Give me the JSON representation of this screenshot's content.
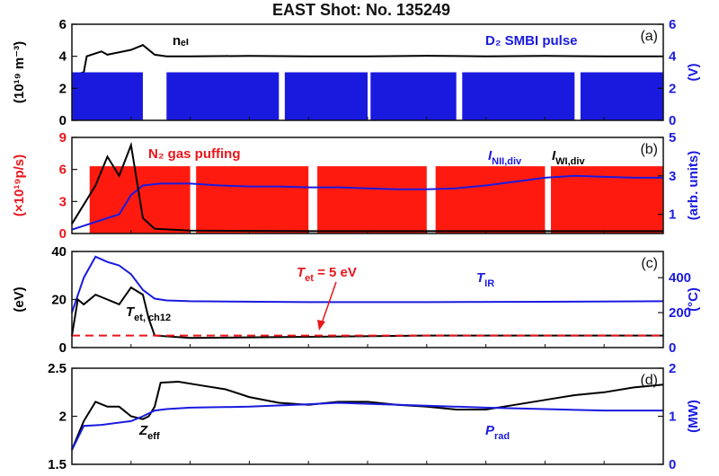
{
  "chart_data": {
    "type": "line",
    "title": "EAST Shot: No. 135249",
    "panels": [
      {
        "id": "a",
        "panel_label": "(a)",
        "left_axis": {
          "label": "(10¹⁹ m⁻³)",
          "ylim": [
            0,
            6
          ],
          "ticks": [
            "0",
            "2",
            "4",
            "6"
          ],
          "color": "#000000"
        },
        "right_axis": {
          "label": "(V)",
          "ylim": [
            0,
            6
          ],
          "ticks": [
            "0",
            "2",
            "4",
            "6"
          ],
          "color": "#1a1adf"
        },
        "annotations": [
          {
            "id": "ne",
            "text": "nₑₗ",
            "color": "#000000"
          },
          {
            "id": "smbi",
            "text": "D₂ SMBI pulse",
            "color": "#1a1adf"
          }
        ],
        "series": [
          {
            "name": "nₑₗ",
            "axis": "left",
            "color": "#000000",
            "x": [
              0,
              0.02,
              0.025,
              0.05,
              0.06,
              0.1,
              0.12,
              0.14,
              0.16,
              0.18,
              0.2,
              0.3,
              0.4,
              0.5,
              0.6,
              0.7,
              0.8,
              0.9,
              1.0
            ],
            "y": [
              2.8,
              3.0,
              4.0,
              4.3,
              4.1,
              4.4,
              4.7,
              4.1,
              4.0,
              4.0,
              4.0,
              4.02,
              4.0,
              4.0,
              4.03,
              4.0,
              4.02,
              4.0,
              4.0
            ]
          },
          {
            "name": "D₂ SMBI pulse",
            "axis": "right",
            "color": "#1a1adf",
            "pulse_level": 3.0,
            "segments": [
              [
                0.0,
                0.12
              ],
              [
                0.16,
                0.35
              ],
              [
                0.36,
                0.5
              ],
              [
                0.505,
                0.65
              ],
              [
                0.66,
                0.85
              ],
              [
                0.86,
                1.0
              ]
            ]
          }
        ]
      },
      {
        "id": "b",
        "panel_label": "(b)",
        "left_axis": {
          "label": "(×10¹⁹p/s)",
          "ylim": [
            0,
            9
          ],
          "ticks": [
            "0",
            "3",
            "6",
            "9"
          ],
          "color": "#e8161b"
        },
        "right_axis": {
          "label": "(arb. units)",
          "ylim": [
            0,
            5
          ],
          "ticks": [
            "1",
            "3",
            "5"
          ],
          "color": "#1a1adf"
        },
        "annotations": [
          {
            "id": "n2",
            "text": "N₂ gas puffing",
            "color": "#e8161b"
          },
          {
            "id": "nii",
            "text": "I_NII,div",
            "color": "#1a1adf"
          },
          {
            "id": "wi",
            "text": "I_WI,div",
            "color": "#000000"
          }
        ],
        "series": [
          {
            "name": "N₂ gas puffing",
            "axis": "left",
            "color": "#ff1a10",
            "pulse_level": 6.3,
            "segments": [
              [
                0.03,
                0.2
              ],
              [
                0.21,
                0.4
              ],
              [
                0.415,
                0.6
              ],
              [
                0.615,
                0.8
              ],
              [
                0.81,
                1.0
              ]
            ]
          },
          {
            "name": "I_NII,div",
            "axis": "right",
            "color": "#1a1adf",
            "x": [
              0.0,
              0.08,
              0.1,
              0.12,
              0.15,
              0.2,
              0.25,
              0.3,
              0.35,
              0.4,
              0.45,
              0.5,
              0.55,
              0.6,
              0.65,
              0.7,
              0.75,
              0.8,
              0.85,
              0.9,
              0.95,
              1.0
            ],
            "y": [
              0.2,
              1.0,
              2.0,
              2.5,
              2.6,
              2.6,
              2.5,
              2.45,
              2.45,
              2.4,
              2.4,
              2.35,
              2.3,
              2.3,
              2.35,
              2.5,
              2.7,
              2.9,
              3.0,
              2.95,
              2.9,
              2.9
            ]
          },
          {
            "name": "I_WI,div",
            "axis": "right",
            "color": "#000000",
            "x": [
              0.0,
              0.04,
              0.06,
              0.08,
              0.1,
              0.12,
              0.14,
              0.2,
              0.4,
              0.6,
              0.8,
              1.0
            ],
            "y": [
              0.5,
              2.5,
              4.0,
              3.0,
              4.6,
              0.8,
              0.25,
              0.15,
              0.12,
              0.12,
              0.12,
              0.12
            ]
          }
        ]
      },
      {
        "id": "c",
        "panel_label": "(c)",
        "left_axis": {
          "label": "(eV)",
          "ylim": [
            0,
            40
          ],
          "ticks": [
            "0",
            "20",
            "40"
          ],
          "color": "#000000"
        },
        "right_axis": {
          "label": "(°C)",
          "ylim": [
            0,
            550
          ],
          "ticks": [
            "0",
            "200",
            "400"
          ],
          "color": "#1a1adf"
        },
        "annotations": [
          {
            "id": "tet5",
            "text": "T_et = 5 eV",
            "color": "#e8161b"
          },
          {
            "id": "tir",
            "text": "T_IR",
            "color": "#1a1adf"
          },
          {
            "id": "tet",
            "text": "T_et, ch12",
            "color": "#000000"
          }
        ],
        "series": [
          {
            "name": "T_IR",
            "axis": "right",
            "color": "#1a1adf",
            "x": [
              0.0,
              0.02,
              0.04,
              0.06,
              0.08,
              0.1,
              0.12,
              0.14,
              0.16,
              0.2,
              0.4,
              0.6,
              0.8,
              1.0
            ],
            "y": [
              200,
              400,
              520,
              490,
              470,
              420,
              330,
              280,
              270,
              265,
              260,
              260,
              262,
              265
            ]
          },
          {
            "name": "T_et, ch12",
            "axis": "left",
            "color": "#000000",
            "x": [
              0.0,
              0.01,
              0.02,
              0.04,
              0.06,
              0.08,
              0.1,
              0.12,
              0.13,
              0.14,
              0.2,
              0.4,
              0.6,
              0.8,
              1.0
            ],
            "y": [
              5,
              20,
              18,
              22,
              20,
              18,
              25,
              22,
              12,
              5,
              4,
              4.5,
              5,
              5,
              5
            ]
          },
          {
            "name": "T_et = 5 eV",
            "axis": "left",
            "color": "#e8161b",
            "dashed": true,
            "x": [
              0.0,
              1.0
            ],
            "y": [
              5,
              5
            ]
          }
        ]
      },
      {
        "id": "d",
        "panel_label": "(d)",
        "left_axis": {
          "label": "",
          "ylim": [
            1.5,
            2.5
          ],
          "ticks": [
            "1.5",
            "2",
            "2.5"
          ],
          "color": "#000000"
        },
        "right_axis": {
          "label": "(MW)",
          "ylim": [
            0,
            2
          ],
          "ticks": [
            "0",
            "1",
            "2"
          ],
          "color": "#1a1adf"
        },
        "annotations": [
          {
            "id": "zeff",
            "text": "Z_eff",
            "color": "#000000"
          },
          {
            "id": "prad",
            "text": "P_rad",
            "color": "#1a1adf"
          }
        ],
        "series": [
          {
            "name": "Z_eff",
            "axis": "left",
            "color": "#000000",
            "x": [
              0.0,
              0.02,
              0.04,
              0.06,
              0.08,
              0.1,
              0.12,
              0.13,
              0.14,
              0.15,
              0.18,
              0.22,
              0.26,
              0.3,
              0.35,
              0.4,
              0.45,
              0.5,
              0.55,
              0.6,
              0.65,
              0.7,
              0.75,
              0.8,
              0.85,
              0.9,
              0.95,
              1.0
            ],
            "y": [
              1.65,
              1.95,
              2.15,
              2.1,
              2.1,
              2.0,
              1.97,
              2.0,
              2.1,
              2.35,
              2.36,
              2.32,
              2.28,
              2.2,
              2.14,
              2.12,
              2.15,
              2.15,
              2.12,
              2.1,
              2.07,
              2.07,
              2.12,
              2.17,
              2.22,
              2.25,
              2.3,
              2.33
            ]
          },
          {
            "name": "P_rad",
            "axis": "right",
            "color": "#1a1adf",
            "x": [
              0.0,
              0.02,
              0.05,
              0.1,
              0.12,
              0.14,
              0.16,
              0.2,
              0.3,
              0.4,
              0.45,
              0.5,
              0.6,
              0.7,
              0.8,
              0.9,
              1.0
            ],
            "y": [
              0.3,
              0.8,
              0.82,
              0.9,
              1.0,
              1.12,
              1.15,
              1.18,
              1.2,
              1.25,
              1.28,
              1.26,
              1.22,
              1.18,
              1.15,
              1.12,
              1.12
            ]
          }
        ]
      }
    ]
  }
}
